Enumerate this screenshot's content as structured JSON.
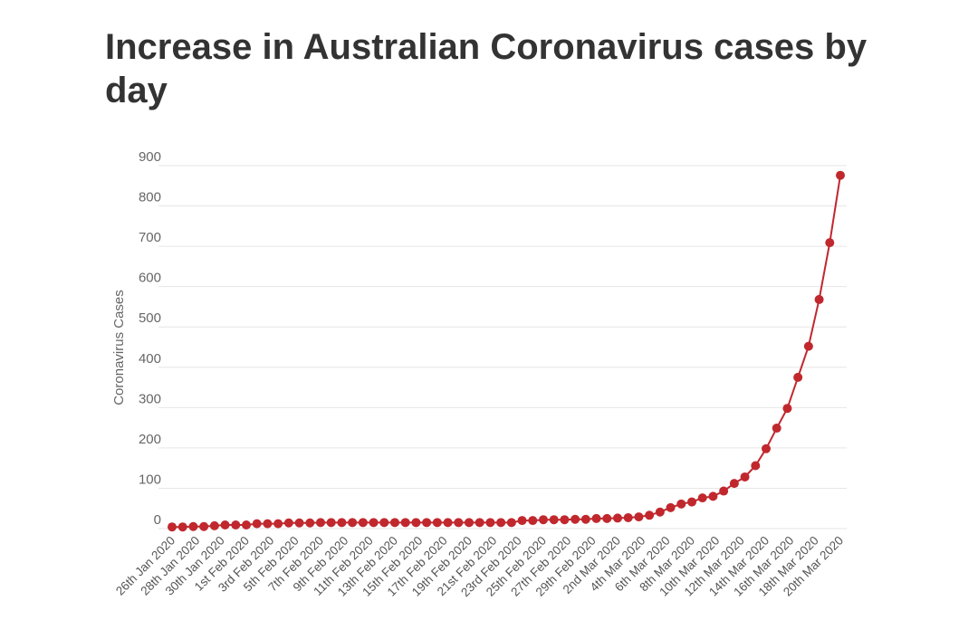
{
  "chart_data": {
    "type": "line",
    "title": "Increase in Australian Coronavirus cases by day",
    "xlabel": "",
    "ylabel": "Coronavirus Cases",
    "ylim": [
      0,
      900
    ],
    "yticks": [
      0,
      100,
      200,
      300,
      400,
      500,
      600,
      700,
      800,
      900
    ],
    "grid": true,
    "legend": "none",
    "x_start": "26th Jan 2020",
    "x_end": "20th Mar 2020",
    "x_tick_labels": [
      "26th Jan 2020",
      "28th Jan 2020",
      "30th Jan 2020",
      "1st Feb 2020",
      "3rd Feb 2020",
      "5th Feb 2020",
      "7th Feb 2020",
      "9th Feb 2020",
      "11th Feb 2020",
      "13th Feb 2020",
      "15th Feb 2020",
      "17th Feb 2020",
      "19th Feb 2020",
      "21st Feb 2020",
      "23rd Feb 2020",
      "25th Feb 2020",
      "27th Feb 2020",
      "29th Feb 2020",
      "2nd Mar 2020",
      "4th Mar 2020",
      "6th Mar 2020",
      "8th Mar 2020",
      "10th Mar 2020",
      "12th Mar 2020",
      "14th Mar 2020",
      "16th Mar 2020",
      "18th Mar 2020",
      "20th Mar 2020"
    ],
    "series": [
      {
        "color": "#c0282e",
        "values": [
          4,
          4,
          5,
          5,
          7,
          9,
          9,
          9,
          12,
          12,
          12,
          14,
          14,
          14,
          15,
          15,
          15,
          15,
          15,
          15,
          15,
          15,
          15,
          15,
          15,
          15,
          15,
          15,
          15,
          15,
          15,
          15,
          15,
          20,
          20,
          22,
          22,
          22,
          23,
          23,
          25,
          25,
          26,
          27,
          29,
          33,
          41,
          52,
          61,
          66,
          76,
          80,
          93,
          112,
          128,
          156,
          198,
          249,
          298,
          375,
          452,
          568,
          709,
          876
        ]
      }
    ]
  }
}
